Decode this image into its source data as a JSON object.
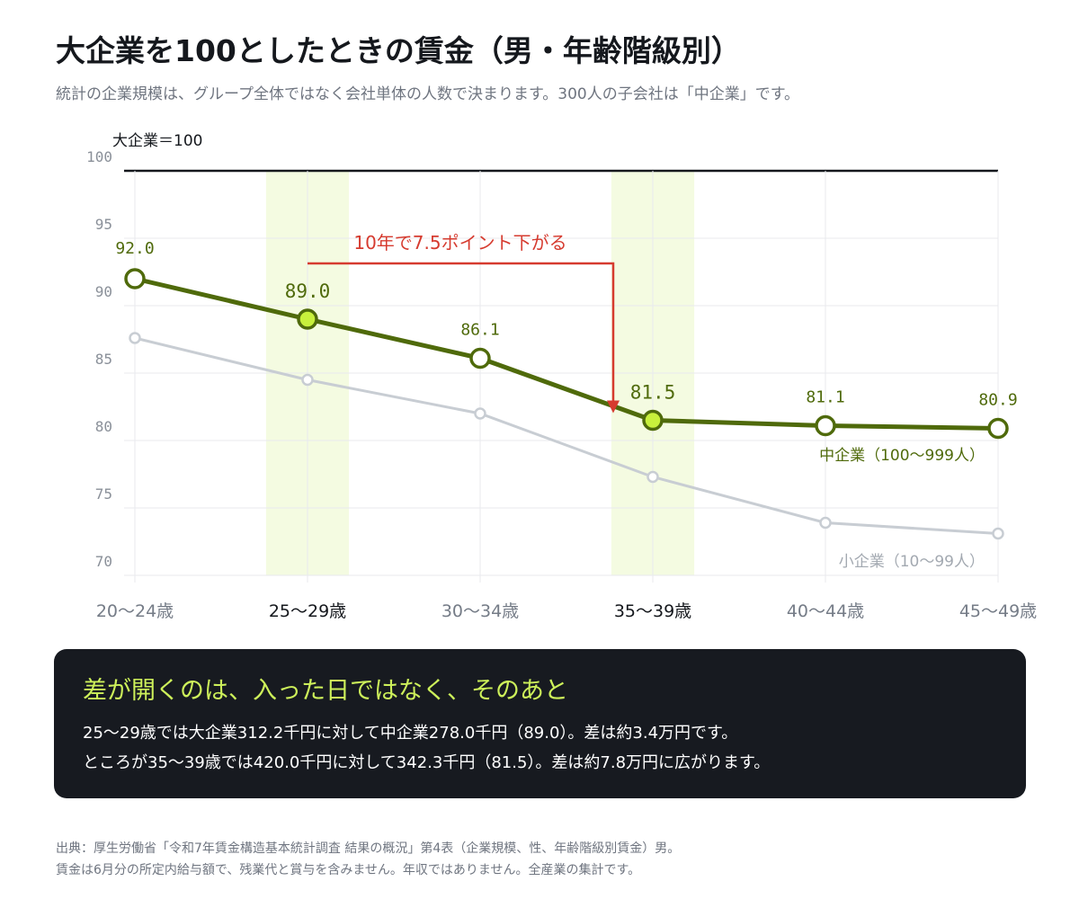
{
  "header": {
    "title": "大企業を100としたときの賃金（男・年齢階級別）",
    "subtitle": "統計の企業規模は、グループ全体ではなく会社単体の人数で決まります。300人の子会社は「中企業」です。"
  },
  "chart_data": {
    "type": "line",
    "ylabel": "大企業＝100",
    "ylim": [
      70,
      100
    ],
    "yticks": [
      "100",
      "95",
      "90",
      "85",
      "80",
      "75",
      "70"
    ],
    "categories": [
      "20〜24歳",
      "25〜29歳",
      "30〜34歳",
      "35〜39歳",
      "40〜44歳",
      "45〜49歳"
    ],
    "highlight_categories": [
      1,
      3
    ],
    "series": [
      {
        "name": "中企業（100〜999人）",
        "values": [
          92.0,
          89.0,
          86.1,
          81.5,
          81.1,
          80.9
        ],
        "labels": [
          "92.0",
          "89.0",
          "86.1",
          "81.5",
          "81.1",
          "80.9"
        ],
        "color": "#4f6a0b"
      },
      {
        "name": "小企業（10〜99人）",
        "values": [
          87.6,
          84.5,
          82.0,
          77.3,
          73.9,
          73.1
        ],
        "color": "#c8cdd3"
      }
    ],
    "reference_value": 100,
    "annotation": "10年で7.5ポイント下がる",
    "colors": {
      "accent": "#d63b2f",
      "highlight_band": "#f4fbe1",
      "highlight_point": "#c8f03c"
    }
  },
  "panel": {
    "title": "差が開くのは、入った日ではなく、そのあと",
    "line1": "25〜29歳では大企業312.2千円に対して中企業278.0千円（89.0）。差は約3.4万円です。",
    "line2": "ところが35〜39歳では420.0千円に対して342.3千円（81.5）。差は約7.8万円に広がります。"
  },
  "footer": {
    "line1": "出典：厚生労働省「令和7年賃金構造基本統計調査 結果の概況」第4表（企業規模、性、年齢階級別賃金）男。",
    "line2": "賃金は6月分の所定内給与額で、残業代と賞与を含みません。年収ではありません。全産業の集計です。"
  }
}
